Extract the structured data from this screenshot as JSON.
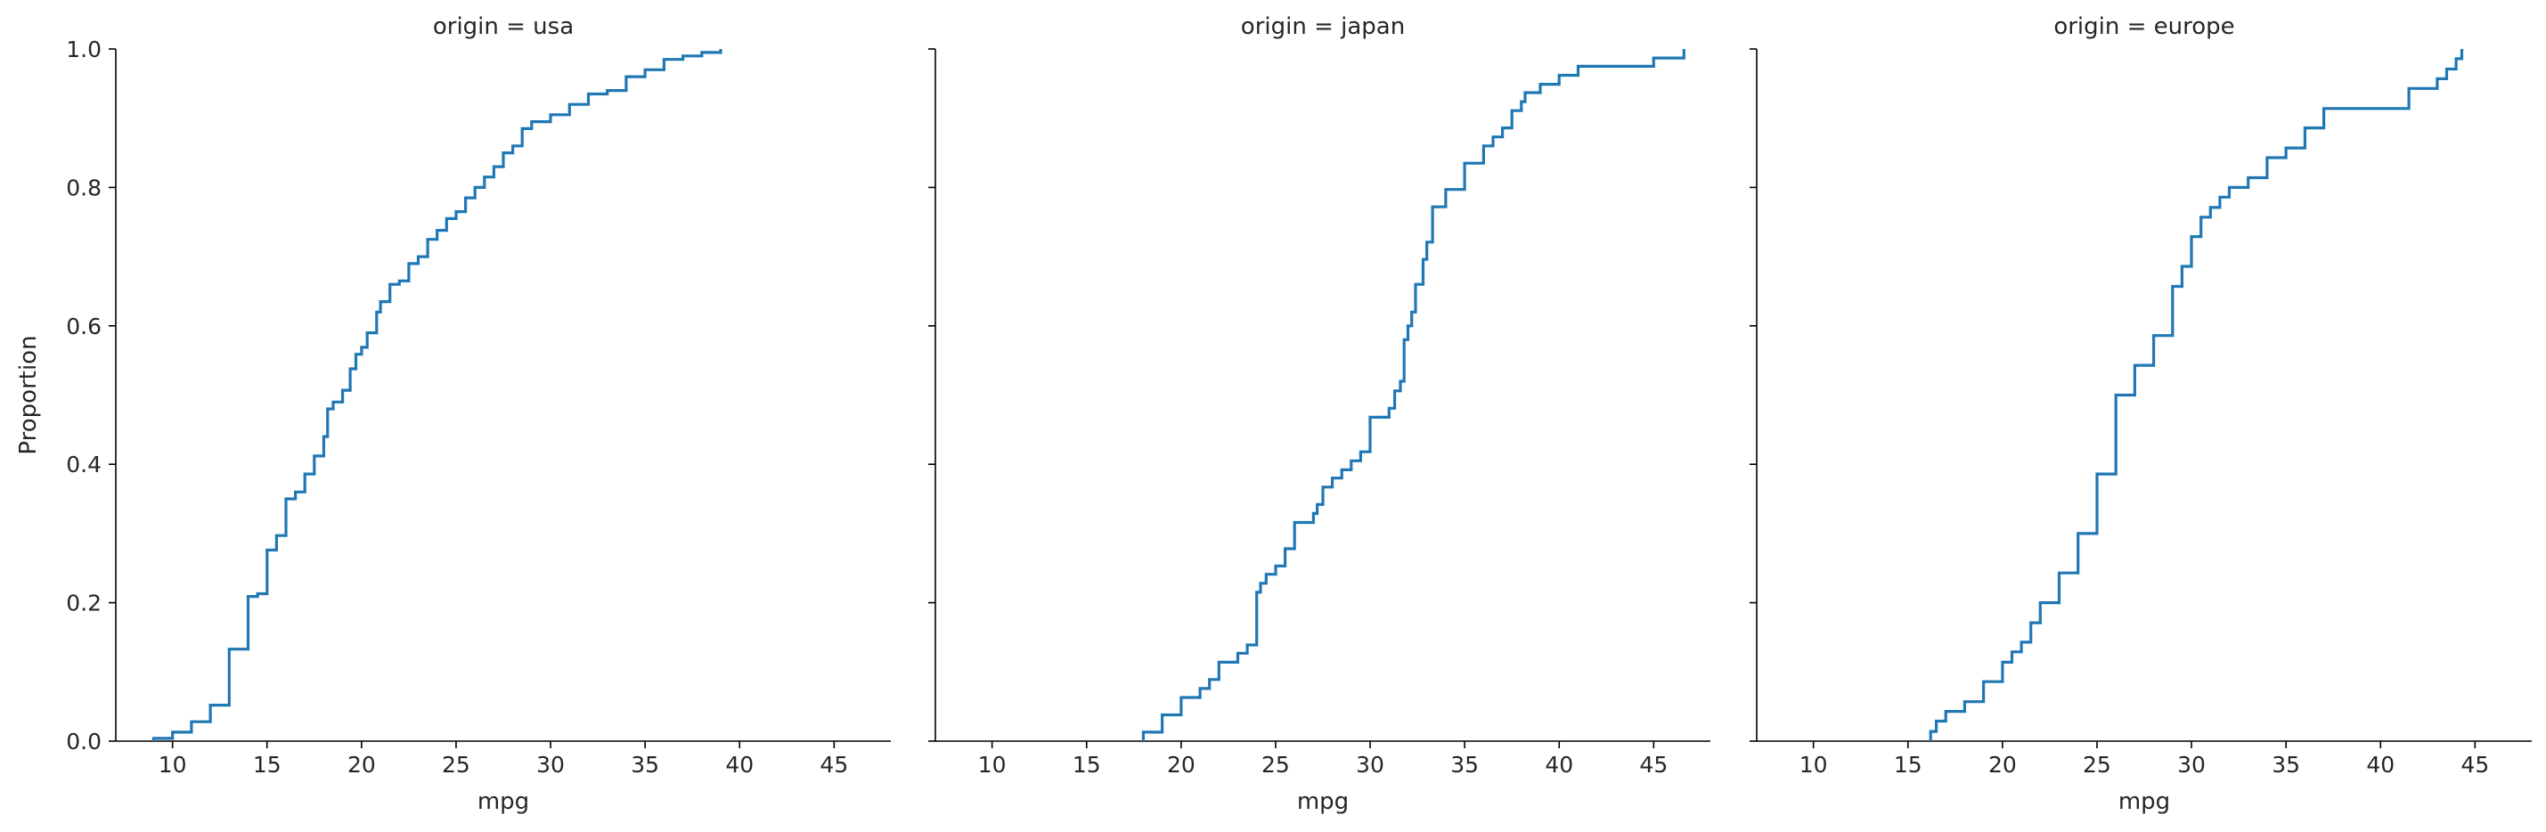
{
  "chart_data": [
    {
      "type": "line",
      "title": "origin = usa",
      "xlabel": "mpg",
      "ylabel": "Proportion",
      "xlim": [
        7,
        48
      ],
      "ylim": [
        0,
        1
      ],
      "xticks": [
        10,
        15,
        20,
        25,
        30,
        35,
        40,
        45
      ],
      "yticks": [
        0.0,
        0.2,
        0.4,
        0.6,
        0.8,
        1.0
      ],
      "ytick_labels": [
        "0.0",
        "0.2",
        "0.4",
        "0.6",
        "0.8",
        "1.0"
      ],
      "grid": false,
      "series": [
        {
          "color": "#1f77b4",
          "x": [
            9,
            10,
            11,
            12,
            13,
            14,
            14.5,
            15,
            15.5,
            16,
            16.5,
            17,
            17.5,
            18,
            18.2,
            18.5,
            19,
            19.4,
            19.7,
            20,
            20.3,
            20.8,
            21,
            21.5,
            22,
            22.5,
            23,
            23.5,
            24,
            24.5,
            25,
            25.5,
            26,
            26.5,
            27,
            27.5,
            28,
            28.5,
            29,
            30,
            31,
            32,
            33,
            34,
            35,
            36,
            37,
            38,
            39
          ],
          "y": [
            0.004,
            0.013,
            0.028,
            0.052,
            0.133,
            0.209,
            0.213,
            0.276,
            0.297,
            0.35,
            0.36,
            0.386,
            0.412,
            0.44,
            0.48,
            0.49,
            0.507,
            0.538,
            0.559,
            0.569,
            0.59,
            0.62,
            0.635,
            0.66,
            0.665,
            0.69,
            0.7,
            0.725,
            0.738,
            0.755,
            0.765,
            0.785,
            0.8,
            0.815,
            0.83,
            0.85,
            0.86,
            0.885,
            0.895,
            0.905,
            0.92,
            0.935,
            0.94,
            0.96,
            0.97,
            0.985,
            0.99,
            0.995,
            1.0
          ]
        }
      ]
    },
    {
      "type": "line",
      "title": "origin = japan",
      "xlabel": "mpg",
      "ylabel": "",
      "xlim": [
        7,
        48
      ],
      "ylim": [
        0,
        1
      ],
      "xticks": [
        10,
        15,
        20,
        25,
        30,
        35,
        40,
        45
      ],
      "yticks": [
        0.0,
        0.2,
        0.4,
        0.6,
        0.8,
        1.0
      ],
      "grid": false,
      "series": [
        {
          "color": "#1f77b4",
          "x": [
            18,
            19,
            20,
            21,
            21.5,
            22,
            23,
            23.5,
            24,
            24.2,
            24.5,
            25,
            25.5,
            26,
            27,
            27.2,
            27.5,
            28,
            28.5,
            29,
            29.5,
            30,
            31,
            31.3,
            31.6,
            31.8,
            32,
            32.2,
            32.4,
            32.8,
            33,
            33.3,
            34,
            35,
            36,
            36.5,
            37,
            37.5,
            38,
            38.2,
            39,
            40,
            41,
            45,
            46.6
          ],
          "y": [
            0.013,
            0.038,
            0.063,
            0.076,
            0.089,
            0.114,
            0.127,
            0.139,
            0.215,
            0.228,
            0.241,
            0.253,
            0.278,
            0.316,
            0.329,
            0.342,
            0.367,
            0.38,
            0.392,
            0.405,
            0.418,
            0.468,
            0.481,
            0.506,
            0.52,
            0.58,
            0.6,
            0.62,
            0.66,
            0.696,
            0.721,
            0.772,
            0.797,
            0.835,
            0.86,
            0.873,
            0.886,
            0.911,
            0.924,
            0.937,
            0.949,
            0.962,
            0.975,
            0.987,
            1.0
          ]
        }
      ]
    },
    {
      "type": "line",
      "title": "origin = europe",
      "xlabel": "mpg",
      "ylabel": "",
      "xlim": [
        7,
        48
      ],
      "ylim": [
        0,
        1
      ],
      "xticks": [
        10,
        15,
        20,
        25,
        30,
        35,
        40,
        45
      ],
      "yticks": [
        0.0,
        0.2,
        0.4,
        0.6,
        0.8,
        1.0
      ],
      "grid": false,
      "series": [
        {
          "color": "#1f77b4",
          "x": [
            16.2,
            16.5,
            17,
            18,
            19,
            20,
            20.5,
            21,
            21.5,
            22,
            23,
            24,
            25,
            26,
            27,
            28,
            29,
            29.5,
            30,
            30.5,
            31,
            31.5,
            32,
            33,
            34,
            35,
            36,
            37,
            41.5,
            43,
            43.5,
            44,
            44.3
          ],
          "y": [
            0.014,
            0.029,
            0.043,
            0.057,
            0.086,
            0.114,
            0.129,
            0.143,
            0.171,
            0.2,
            0.243,
            0.3,
            0.386,
            0.5,
            0.543,
            0.586,
            0.657,
            0.686,
            0.729,
            0.757,
            0.771,
            0.786,
            0.8,
            0.814,
            0.843,
            0.857,
            0.886,
            0.914,
            0.943,
            0.957,
            0.971,
            0.986,
            1.0
          ]
        }
      ]
    }
  ]
}
